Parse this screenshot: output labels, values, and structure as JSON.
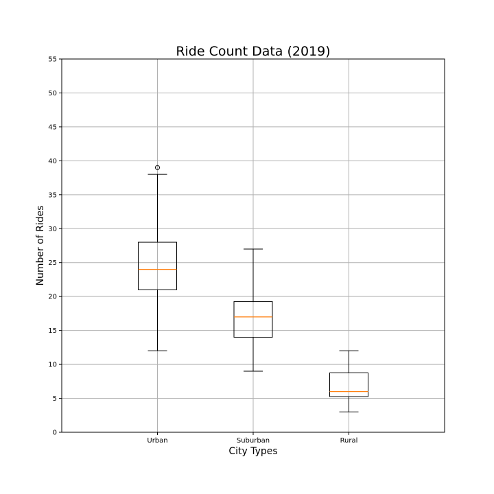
{
  "chart_data": {
    "type": "box",
    "title": "Ride Count Data (2019)",
    "xlabel": "City Types",
    "ylabel": "Number of Rides",
    "ylim": [
      0,
      55
    ],
    "yticks": [
      0,
      5,
      10,
      15,
      20,
      25,
      30,
      35,
      40,
      45,
      50,
      55
    ],
    "grid": true,
    "categories": [
      "Urban",
      "Suburban",
      "Rural"
    ],
    "boxes": [
      {
        "category": "Urban",
        "whisker_low": 12,
        "q1": 21,
        "median": 24,
        "q3": 28,
        "whisker_high": 38,
        "outliers": [
          39
        ]
      },
      {
        "category": "Suburban",
        "whisker_low": 9,
        "q1": 14,
        "median": 17,
        "q3": 19.25,
        "whisker_high": 27,
        "outliers": []
      },
      {
        "category": "Rural",
        "whisker_low": 3,
        "q1": 5.25,
        "median": 6,
        "q3": 8.75,
        "whisker_high": 12,
        "outliers": []
      }
    ],
    "colors": {
      "box": "#000000",
      "median": "#ff7f0e",
      "grid": "#b0b0b0",
      "background": "#ffffff"
    }
  }
}
